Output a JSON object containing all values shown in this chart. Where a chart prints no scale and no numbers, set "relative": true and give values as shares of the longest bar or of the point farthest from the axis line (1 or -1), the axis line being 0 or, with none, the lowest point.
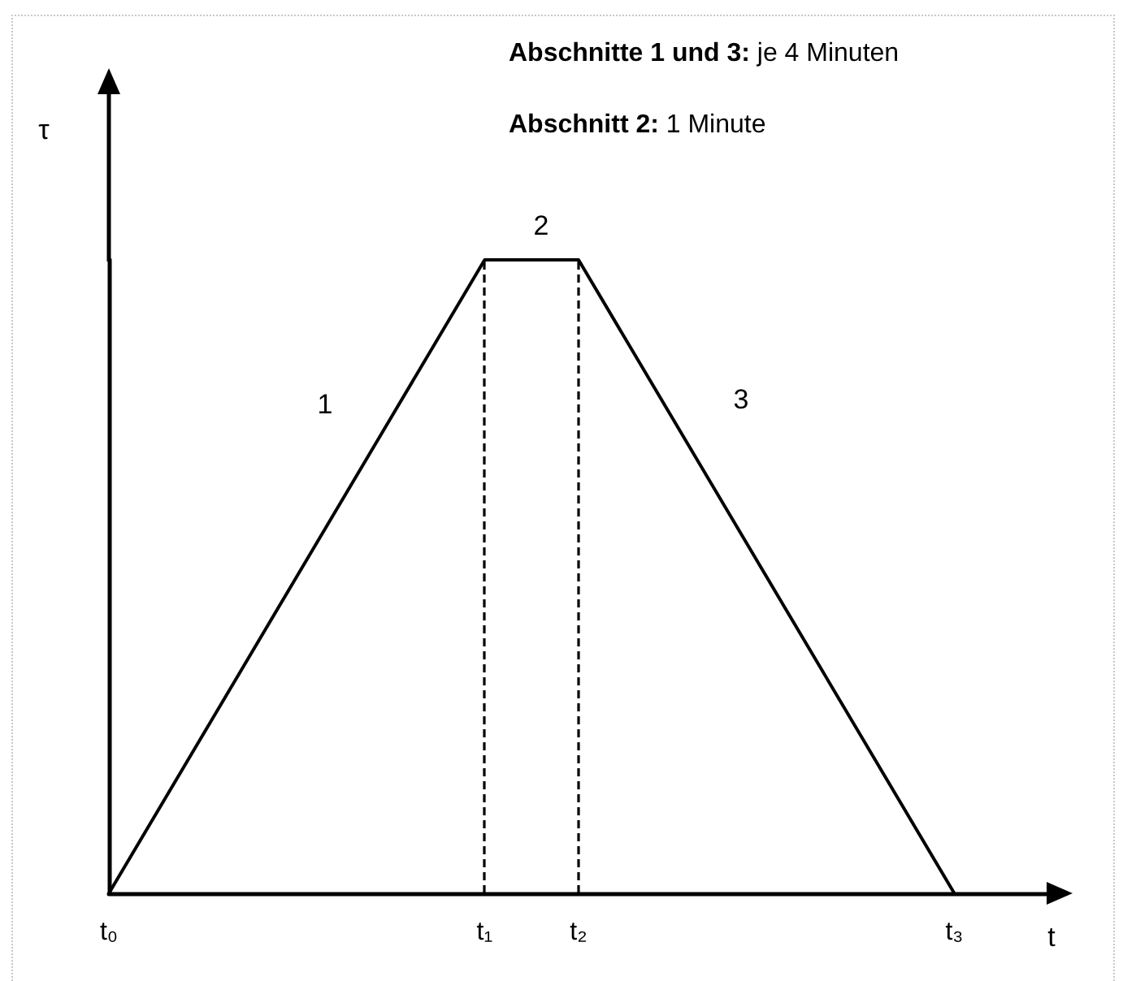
{
  "chart_data": {
    "type": "line",
    "relative": true,
    "xlabel": "t",
    "ylabel": "τ",
    "categories": [
      "t₀",
      null,
      null,
      null,
      "t₁",
      "t₂",
      null,
      null,
      null,
      "t₃",
      null
    ],
    "marker": "none",
    "line_style": "solid",
    "series": [
      {
        "values": [
          0,
          0.25,
          0.5,
          0.75,
          1,
          1,
          0.75,
          0.5,
          0.25,
          0,
          null
        ],
        "color": "#000000"
      }
    ],
    "ref_lines": [
      {
        "axis": "x",
        "value": "t₁",
        "color": "#000000",
        "line_style": "dashed"
      },
      {
        "axis": "x",
        "value": "t₂",
        "color": "#000000",
        "line_style": "dashed"
      }
    ],
    "annotations": [
      "Abschnitte 1 und 3: je 4 Minuten",
      "Abschnitt 2: 1 Minute",
      "1",
      "2",
      "3"
    ]
  }
}
